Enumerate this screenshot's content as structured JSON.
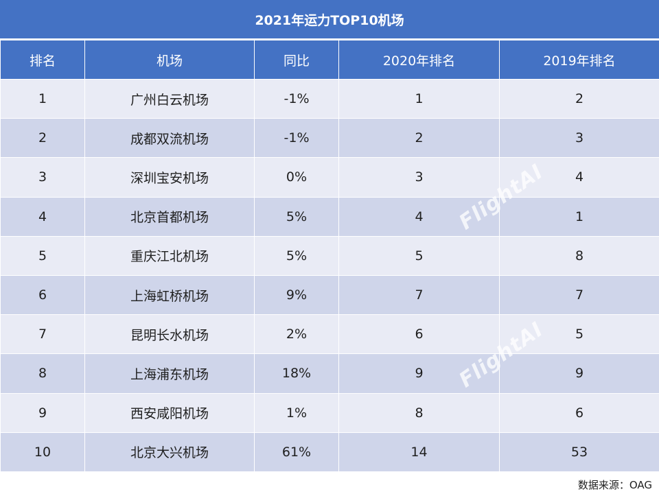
{
  "title": "2021年运力TOP10机场",
  "headers": [
    "排名",
    "机场",
    "同比",
    "2020年排名",
    "2019年排名"
  ],
  "rows": [
    [
      "1",
      "广州白云机场",
      "-1%",
      "1",
      "2"
    ],
    [
      "2",
      "成都双流机场",
      "-1%",
      "2",
      "3"
    ],
    [
      "3",
      "深圳宝安机场",
      "0%",
      "3",
      "4"
    ],
    [
      "4",
      "北京首都机场",
      "5%",
      "4",
      "1"
    ],
    [
      "5",
      "重庆江北机场",
      "5%",
      "5",
      "8"
    ],
    [
      "6",
      "上海虹桥机场",
      "9%",
      "7",
      "7"
    ],
    [
      "7",
      "昆明长水机场",
      "2%",
      "6",
      "5"
    ],
    [
      "8",
      "上海浦东机场",
      "18%",
      "9",
      "9"
    ],
    [
      "9",
      "西安咸阳机场",
      "1%",
      "8",
      "6"
    ],
    [
      "10",
      "北京大兴机场",
      "61%",
      "14",
      "53"
    ]
  ],
  "source": "数据来源：OAG",
  "watermark": "FlightAI",
  "colors": {
    "header_bg": "#4472c4",
    "row_light": "#e9ebf5",
    "row_dark": "#cfd5ea"
  }
}
